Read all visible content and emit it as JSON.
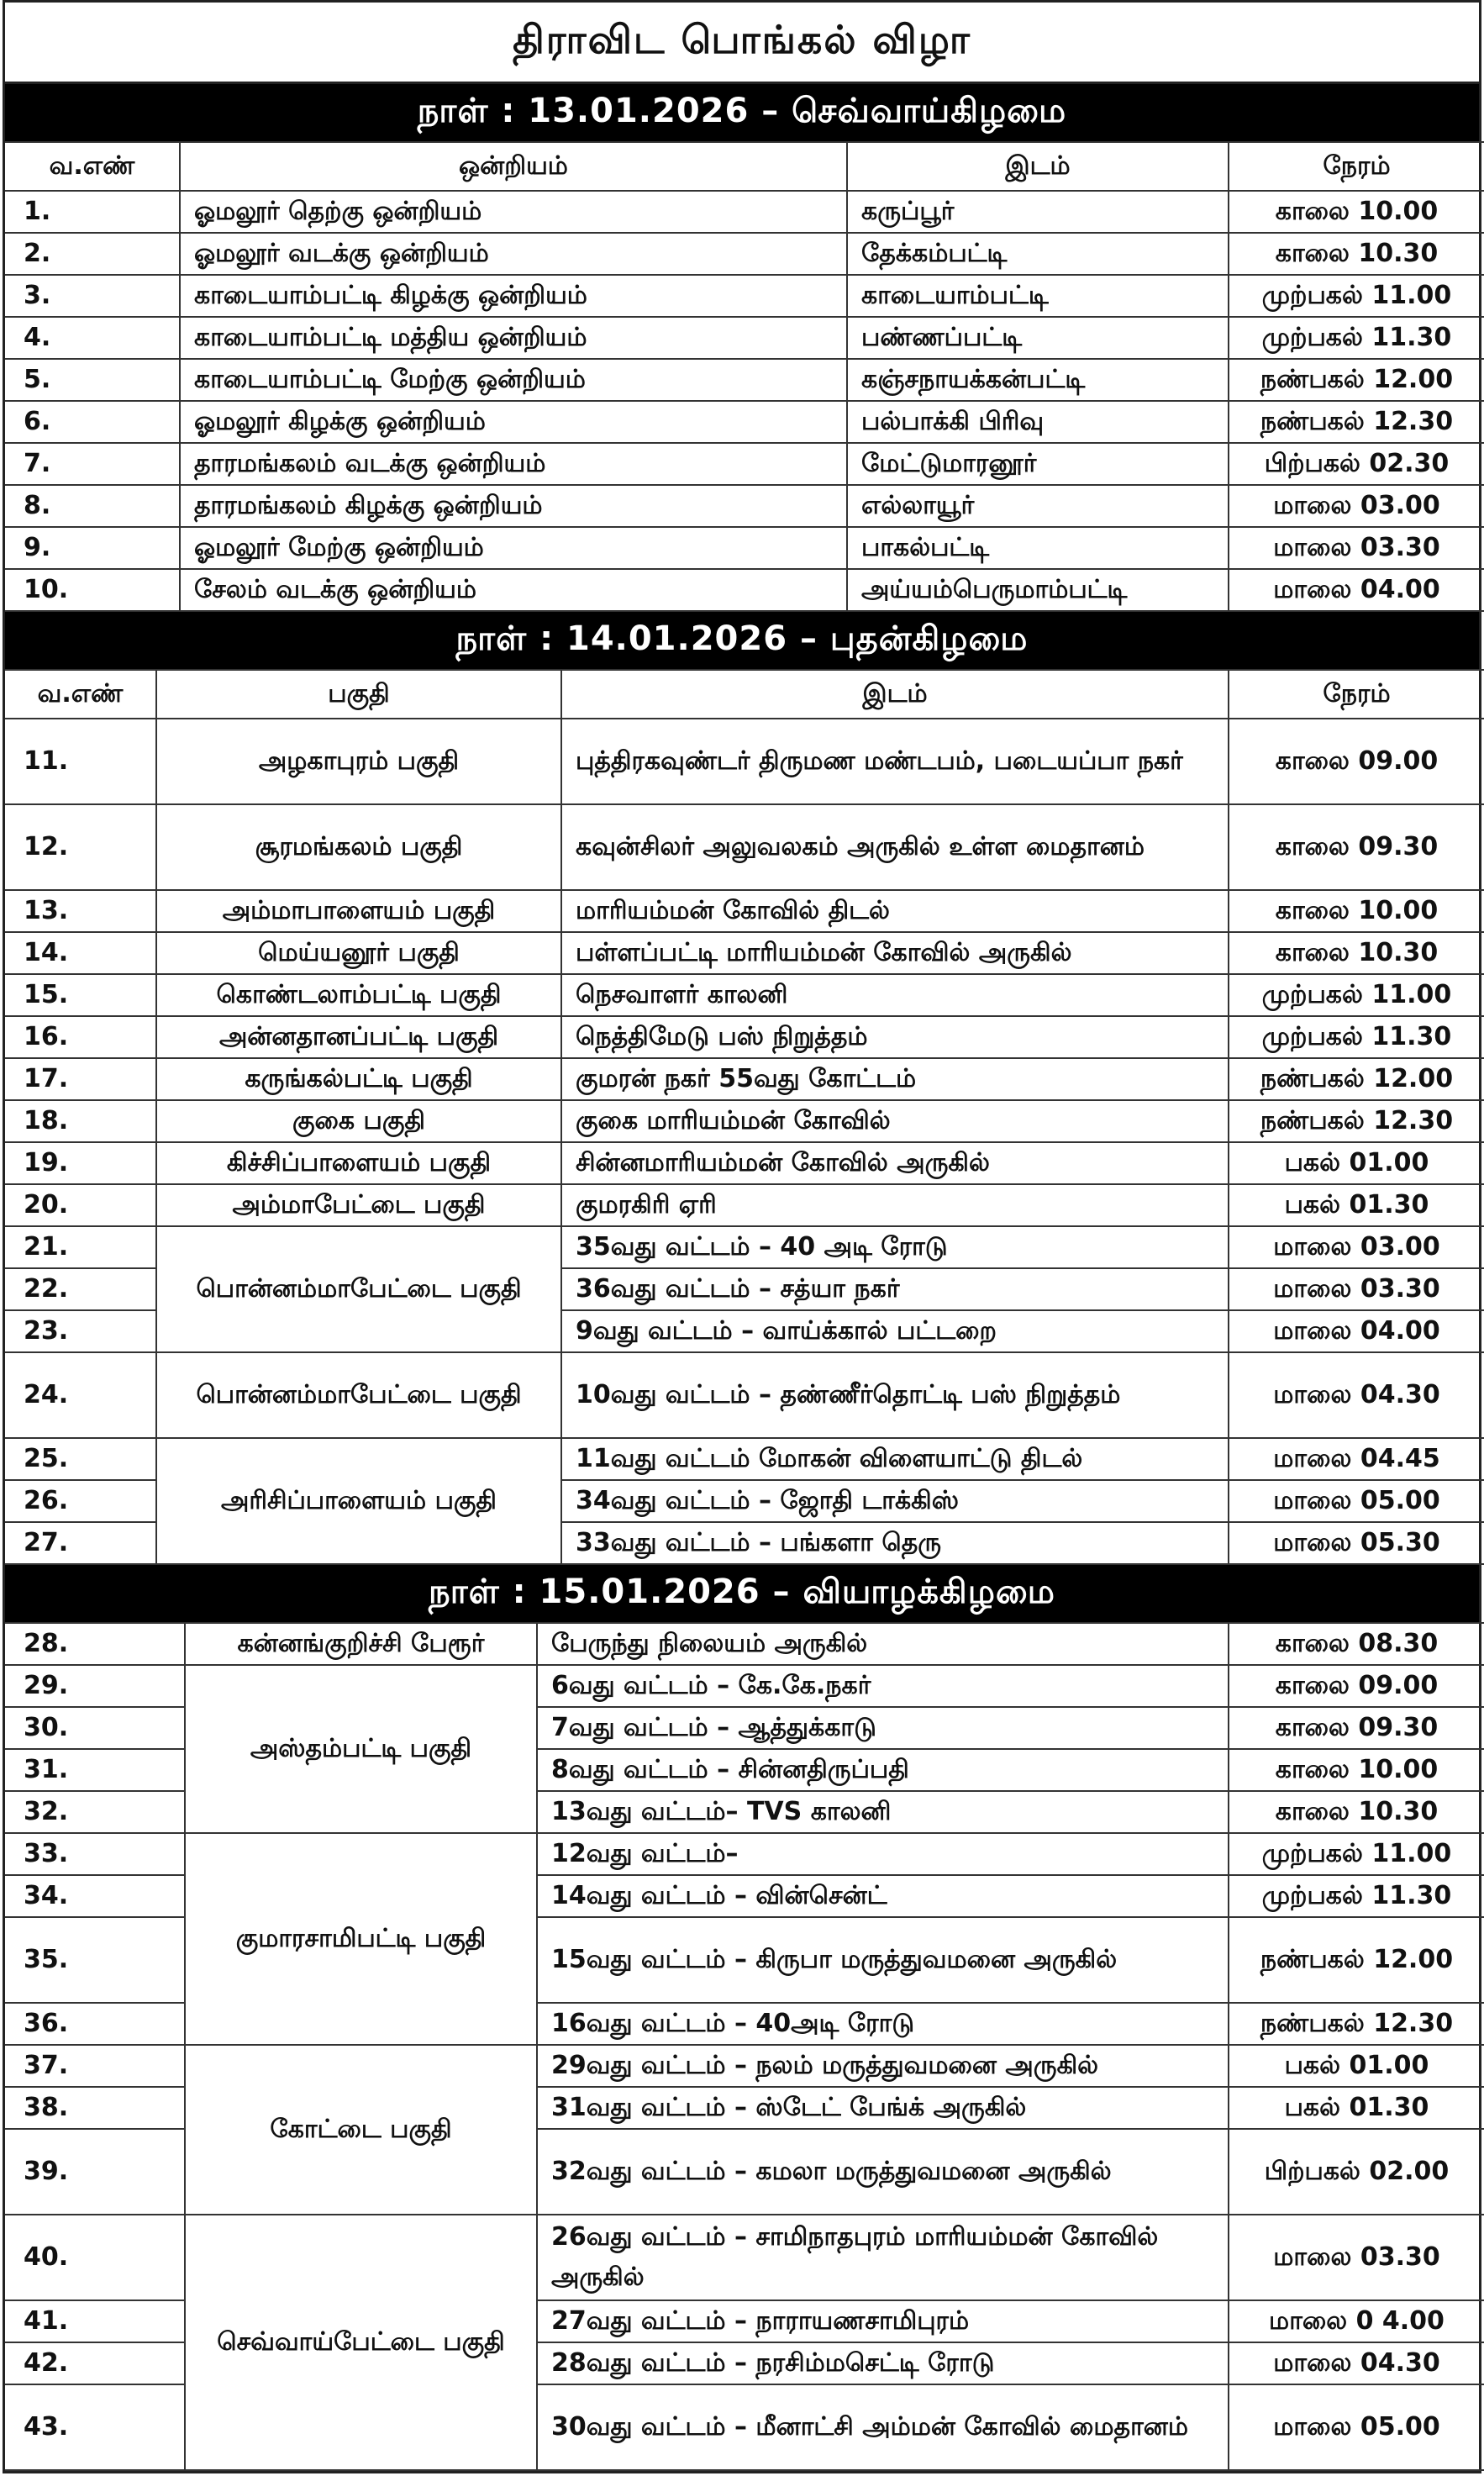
{
  "title": "திராவிட பொங்கல் விழா",
  "sections": [
    {
      "day": "நாள்  :  13.01.2026  –  செவ்வாய்கிழமை",
      "headers": [
        "வ.எண்",
        "ஒன்றியம்",
        "இடம்",
        "நேரம்"
      ],
      "rows": [
        {
          "sn": "1.",
          "area": "ஓமலூர் தெற்கு ஒன்றியம்",
          "span": 1,
          "place": "கருப்பூர்",
          "time": "காலை 10.00"
        },
        {
          "sn": "2.",
          "area": "ஓமலூர் வடக்கு ஒன்றியம்",
          "span": 1,
          "place": "தேக்கம்பட்டி",
          "time": "காலை 10.30"
        },
        {
          "sn": "3.",
          "area": "காடையாம்பட்டி கிழக்கு ஒன்றியம்",
          "span": 1,
          "place": "காடையாம்பட்டி",
          "time": "முற்பகல் 11.00"
        },
        {
          "sn": "4.",
          "area": "காடையாம்பட்டி மத்திய ஒன்றியம்",
          "span": 1,
          "place": "பண்ணப்பட்டி",
          "time": "முற்பகல் 11.30"
        },
        {
          "sn": "5.",
          "area": "காடையாம்பட்டி மேற்கு ஒன்றியம்",
          "span": 1,
          "place": "கஞ்சநாயக்கன்பட்டி",
          "time": "நண்பகல் 12.00"
        },
        {
          "sn": "6.",
          "area": "ஓமலூர் கிழக்கு ஒன்றியம்",
          "span": 1,
          "place": "பல்பாக்கி பிரிவு",
          "time": "நண்பகல் 12.30"
        },
        {
          "sn": "7.",
          "area": "தாரமங்கலம் வடக்கு ஒன்றியம்",
          "span": 1,
          "place": "மேட்டுமாரனூர்",
          "time": "பிற்பகல் 02.30"
        },
        {
          "sn": "8.",
          "area": "தாரமங்கலம் கிழக்கு ஒன்றியம்",
          "span": 1,
          "place": "எல்லாயூர்",
          "time": "மாலை 03.00"
        },
        {
          "sn": "9.",
          "area": "ஓமலூர் மேற்கு ஒன்றியம்",
          "span": 1,
          "place": "பாகல்பட்டி",
          "time": "மாலை 03.30"
        },
        {
          "sn": "10.",
          "area": "சேலம் வடக்கு ஒன்றியம்",
          "span": 1,
          "place": "அய்யம்பெருமாம்பட்டி",
          "time": "மாலை 04.00"
        }
      ]
    },
    {
      "day": "நாள்  :  14.01.2026  –  புதன்கிழமை",
      "headers": [
        "வ.எண்",
        "பகுதி",
        "இடம்",
        "நேரம்"
      ],
      "rows": [
        {
          "sn": "11.",
          "area": "அழகாபுரம் பகுதி",
          "span": 1,
          "place": "புத்திரகவுண்டர் திருமண மண்டபம், படையப்பா நகர்",
          "time": "காலை 09.00"
        },
        {
          "sn": "12.",
          "area": "சூரமங்கலம் பகுதி",
          "span": 1,
          "place": "கவுன்சிலர் அலுவலகம் அருகில் உள்ள மைதானம்",
          "time": "காலை 09.30"
        },
        {
          "sn": "13.",
          "area": "அம்மாபாளையம் பகுதி",
          "span": 1,
          "place": "மாரியம்மன் கோவில் திடல்",
          "time": "காலை 10.00"
        },
        {
          "sn": "14.",
          "area": "மெய்யனூர் பகுதி",
          "span": 1,
          "place": "பள்ளப்பட்டி மாரியம்மன் கோவில் அருகில்",
          "time": "காலை 10.30"
        },
        {
          "sn": "15.",
          "area": "கொண்டலாம்பட்டி பகுதி",
          "span": 1,
          "place": "நெசவாளர் காலனி",
          "time": "முற்பகல் 11.00"
        },
        {
          "sn": "16.",
          "area": "அன்னதானப்பட்டி பகுதி",
          "span": 1,
          "place": "நெத்திமேடு பஸ் நிறுத்தம்",
          "time": "முற்பகல் 11.30"
        },
        {
          "sn": "17.",
          "area": "கருங்கல்பட்டி பகுதி",
          "span": 1,
          "place": "குமரன் நகர் 55வது கோட்டம்",
          "time": "நண்பகல் 12.00"
        },
        {
          "sn": "18.",
          "area": "குகை பகுதி",
          "span": 1,
          "place": "குகை மாரியம்மன் கோவில்",
          "time": "நண்பகல் 12.30"
        },
        {
          "sn": "19.",
          "area": "கிச்சிப்பாளையம் பகுதி",
          "span": 1,
          "place": "சின்னமாரியம்மன் கோவில் அருகில்",
          "time": "பகல் 01.00"
        },
        {
          "sn": "20.",
          "area": "அம்மாபேட்டை பகுதி",
          "span": 1,
          "place": "குமரகிரி ஏரி",
          "time": "பகல் 01.30"
        },
        {
          "sn": "21.",
          "area": "பொன்னம்மாபேட்டை பகுதி",
          "span": 3,
          "place": "35வது வட்டம் – 40 அடி ரோடு",
          "time": "மாலை 03.00"
        },
        {
          "sn": "22.",
          "place": "36வது வட்டம் – சத்யா நகர்",
          "time": "மாலை 03.30"
        },
        {
          "sn": "23.",
          "place": "9வது வட்டம் – வாய்க்கால் பட்டறை",
          "time": "மாலை 04.00"
        },
        {
          "sn": "24.",
          "area": "பொன்னம்மாபேட்டை பகுதி",
          "span": 1,
          "place": "10வது வட்டம் – தண்ணீர்தொட்டி பஸ் நிறுத்தம்",
          "time": "மாலை 04.30"
        },
        {
          "sn": "25.",
          "area": "அரிசிப்பாளையம் பகுதி",
          "span": 3,
          "place": "11வது வட்டம் மோகன் விளையாட்டு திடல்",
          "time": "மாலை 04.45"
        },
        {
          "sn": "26.",
          "place": "34வது வட்டம் – ஜோதி டாக்கிஸ்",
          "time": "மாலை 05.00"
        },
        {
          "sn": "27.",
          "place": "33வது வட்டம் – பங்களா தெரு",
          "time": "மாலை 05.30"
        }
      ]
    },
    {
      "day": "நாள்  :  15.01.2026  –  வியாழக்கிழமை",
      "rows": [
        {
          "sn": "28.",
          "area": "கன்னங்குறிச்சி பேரூர்",
          "span": 1,
          "place": "பேருந்து நிலையம் அருகில்",
          "time": "காலை 08.30"
        },
        {
          "sn": "29.",
          "area": "அஸ்தம்பட்டி பகுதி",
          "span": 4,
          "place": "6வது வட்டம் – கே.கே.நகர்",
          "time": "காலை 09.00"
        },
        {
          "sn": "30.",
          "place": "7வது வட்டம் – ஆத்துக்காடு",
          "time": "காலை 09.30"
        },
        {
          "sn": "31.",
          "place": "8வது வட்டம் – சின்னதிருப்பதி",
          "time": "காலை 10.00"
        },
        {
          "sn": "32.",
          "place": "13வது வட்டம்– TVS காலனி",
          "time": "காலை 10.30"
        },
        {
          "sn": "33.",
          "area": "குமாரசாமிபட்டி பகுதி",
          "span": 4,
          "place": "12வது வட்டம்–",
          "time": "முற்பகல் 11.00"
        },
        {
          "sn": "34.",
          "place": "14வது வட்டம் – வின்சென்ட்",
          "time": "முற்பகல் 11.30"
        },
        {
          "sn": "35.",
          "place": "15வது வட்டம் – கிருபா மருத்துவமனை அருகில்",
          "time": "நண்பகல் 12.00"
        },
        {
          "sn": "36.",
          "place": "16வது வட்டம் – 40அடி ரோடு",
          "time": "நண்பகல் 12.30"
        },
        {
          "sn": "37.",
          "area": "கோட்டை பகுதி",
          "span": 3,
          "place": "29வது வட்டம் – நலம் மருத்துவமனை அருகில்",
          "time": "பகல் 01.00"
        },
        {
          "sn": "38.",
          "place": "31வது வட்டம் – ஸ்டேட் பேங்க் அருகில்",
          "time": "பகல் 01.30"
        },
        {
          "sn": "39.",
          "place": "32வது வட்டம் – கமலா மருத்துவமனை அருகில்",
          "time": "பிற்பகல் 02.00"
        },
        {
          "sn": "40.",
          "area": "செவ்வாய்பேட்டை பகுதி",
          "span": 4,
          "place": "26வது வட்டம் – சாமிநாதபுரம் மாரியம்மன் கோவில் அருகில்",
          "time": "மாலை 03.30"
        },
        {
          "sn": "41.",
          "place": "27வது வட்டம் – நாராயணசாமிபுரம்",
          "time": "மாலை 0 4.00"
        },
        {
          "sn": "42.",
          "place": "28வது வட்டம் – நரசிம்மசெட்டி ரோடு",
          "time": "மாலை 04.30"
        },
        {
          "sn": "43.",
          "place": "30வது வட்டம் – மீனாட்சி அம்மன் கோவில் மைதானம்",
          "time": "மாலை 05.00"
        }
      ]
    }
  ]
}
